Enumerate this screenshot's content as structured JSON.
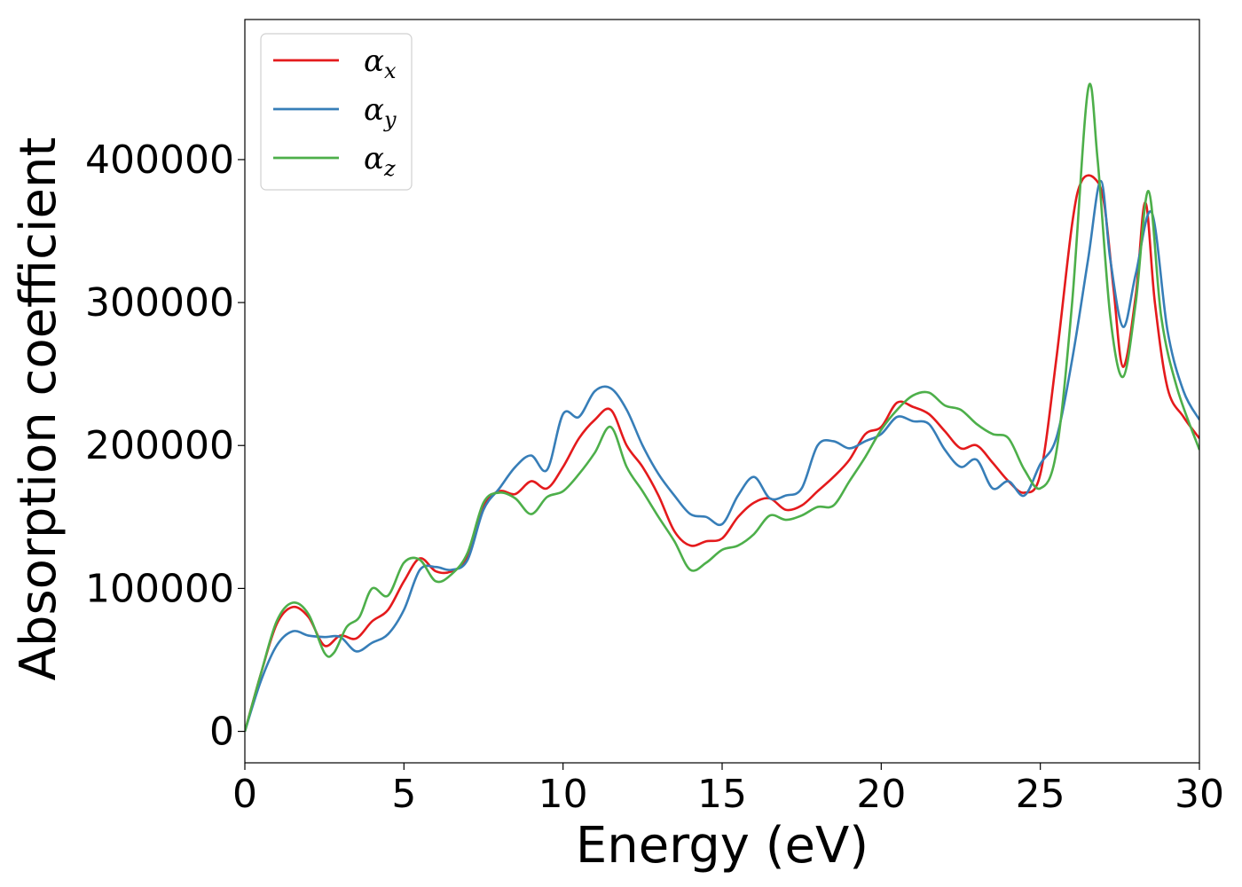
{
  "chart_data": {
    "type": "line",
    "xlabel": "Energy (eV)",
    "ylabel": "Absorption coefficient",
    "xlim": [
      0,
      30
    ],
    "ylim": [
      -22000,
      498000
    ],
    "xticks": [
      0,
      5,
      10,
      15,
      20,
      25,
      30
    ],
    "xtick_labels": [
      "0",
      "5",
      "10",
      "15",
      "20",
      "25",
      "30"
    ],
    "yticks": [
      0,
      100000,
      200000,
      300000,
      400000
    ],
    "ytick_labels": [
      "0",
      "100000",
      "200000",
      "300000",
      "400000"
    ],
    "grid": false,
    "legend_position": "top-left",
    "series": [
      {
        "name": "α_x",
        "name_main": "α",
        "name_sub": "x",
        "color": "#e41a1c",
        "x": [
          0,
          0.5,
          1.0,
          1.5,
          2.0,
          2.5,
          3.0,
          3.5,
          4.0,
          4.5,
          5.0,
          5.5,
          6.0,
          6.5,
          7.0,
          7.5,
          8.0,
          8.5,
          9.0,
          9.5,
          10.0,
          10.5,
          11.0,
          11.5,
          12.0,
          12.5,
          13.0,
          13.5,
          14.0,
          14.5,
          15.0,
          15.5,
          16.0,
          16.5,
          17.0,
          17.5,
          18.0,
          18.5,
          19.0,
          19.5,
          20.0,
          20.5,
          21.0,
          21.5,
          22.0,
          22.5,
          23.0,
          23.5,
          24.0,
          24.5,
          25.0,
          25.5,
          26.0,
          26.3,
          26.7,
          27.0,
          27.3,
          27.6,
          28.0,
          28.3,
          28.6,
          29.0,
          29.5,
          30.0
        ],
        "y": [
          0,
          40000,
          75000,
          87000,
          80000,
          60000,
          67000,
          65000,
          77000,
          85000,
          105000,
          121000,
          112000,
          112000,
          122000,
          158000,
          168000,
          166000,
          175000,
          170000,
          185000,
          205000,
          218000,
          225000,
          200000,
          185000,
          165000,
          140000,
          130000,
          133000,
          135000,
          150000,
          160000,
          163000,
          155000,
          158000,
          168000,
          178000,
          190000,
          208000,
          213000,
          230000,
          227000,
          222000,
          210000,
          198000,
          200000,
          188000,
          175000,
          167000,
          180000,
          260000,
          355000,
          385000,
          387000,
          370000,
          310000,
          255000,
          305000,
          370000,
          300000,
          240000,
          220000,
          205000
        ]
      },
      {
        "name": "α_y",
        "name_main": "α",
        "name_sub": "y",
        "color": "#377eb8",
        "x": [
          0,
          0.5,
          1.0,
          1.5,
          2.0,
          2.5,
          3.0,
          3.5,
          4.0,
          4.5,
          5.0,
          5.5,
          6.0,
          6.5,
          7.0,
          7.5,
          8.0,
          8.5,
          9.0,
          9.5,
          10.0,
          10.5,
          11.0,
          11.5,
          12.0,
          12.5,
          13.0,
          13.5,
          14.0,
          14.5,
          15.0,
          15.5,
          16.0,
          16.5,
          17.0,
          17.5,
          18.0,
          18.5,
          19.0,
          19.5,
          20.0,
          20.5,
          21.0,
          21.5,
          22.0,
          22.5,
          23.0,
          23.5,
          24.0,
          24.5,
          25.0,
          25.5,
          26.0,
          26.5,
          26.9,
          27.2,
          27.6,
          28.0,
          28.5,
          29.0,
          29.5,
          30.0
        ],
        "y": [
          0,
          35000,
          60000,
          70000,
          67000,
          66000,
          66000,
          56000,
          62000,
          68000,
          85000,
          113000,
          115000,
          113000,
          120000,
          155000,
          170000,
          185000,
          193000,
          183000,
          222000,
          220000,
          238000,
          240000,
          225000,
          200000,
          180000,
          165000,
          152000,
          150000,
          145000,
          165000,
          178000,
          163000,
          165000,
          170000,
          200000,
          203000,
          198000,
          203000,
          208000,
          220000,
          217000,
          215000,
          197000,
          185000,
          190000,
          170000,
          175000,
          165000,
          187000,
          205000,
          260000,
          330000,
          385000,
          330000,
          283000,
          320000,
          363000,
          280000,
          238000,
          218000
        ]
      },
      {
        "name": "α_z",
        "name_main": "α",
        "name_sub": "z",
        "color": "#4daf4a",
        "x": [
          0,
          0.5,
          1.0,
          1.5,
          2.0,
          2.5,
          2.8,
          3.2,
          3.6,
          4.0,
          4.5,
          5.0,
          5.5,
          6.0,
          6.5,
          7.0,
          7.5,
          8.0,
          8.5,
          9.0,
          9.5,
          10.0,
          10.5,
          11.0,
          11.5,
          12.0,
          12.5,
          13.0,
          13.5,
          14.0,
          14.5,
          15.0,
          15.5,
          16.0,
          16.5,
          17.0,
          17.5,
          18.0,
          18.5,
          19.0,
          19.5,
          20.0,
          20.5,
          21.0,
          21.5,
          22.0,
          22.5,
          23.0,
          23.5,
          24.0,
          24.5,
          25.0,
          25.5,
          26.0,
          26.5,
          26.8,
          27.2,
          27.6,
          28.0,
          28.4,
          28.8,
          29.3,
          30.0
        ],
        "y": [
          0,
          40000,
          77000,
          90000,
          82000,
          55000,
          55000,
          73000,
          80000,
          100000,
          95000,
          118000,
          120000,
          105000,
          110000,
          125000,
          160000,
          167000,
          163000,
          152000,
          164000,
          168000,
          180000,
          195000,
          213000,
          185000,
          168000,
          150000,
          133000,
          113000,
          118000,
          127000,
          130000,
          138000,
          151000,
          148000,
          151000,
          157000,
          158000,
          175000,
          192000,
          211000,
          225000,
          235000,
          237000,
          228000,
          225000,
          215000,
          208000,
          205000,
          183000,
          170000,
          195000,
          300000,
          449000,
          400000,
          290000,
          248000,
          300000,
          378000,
          290000,
          240000,
          197000
        ]
      }
    ]
  }
}
